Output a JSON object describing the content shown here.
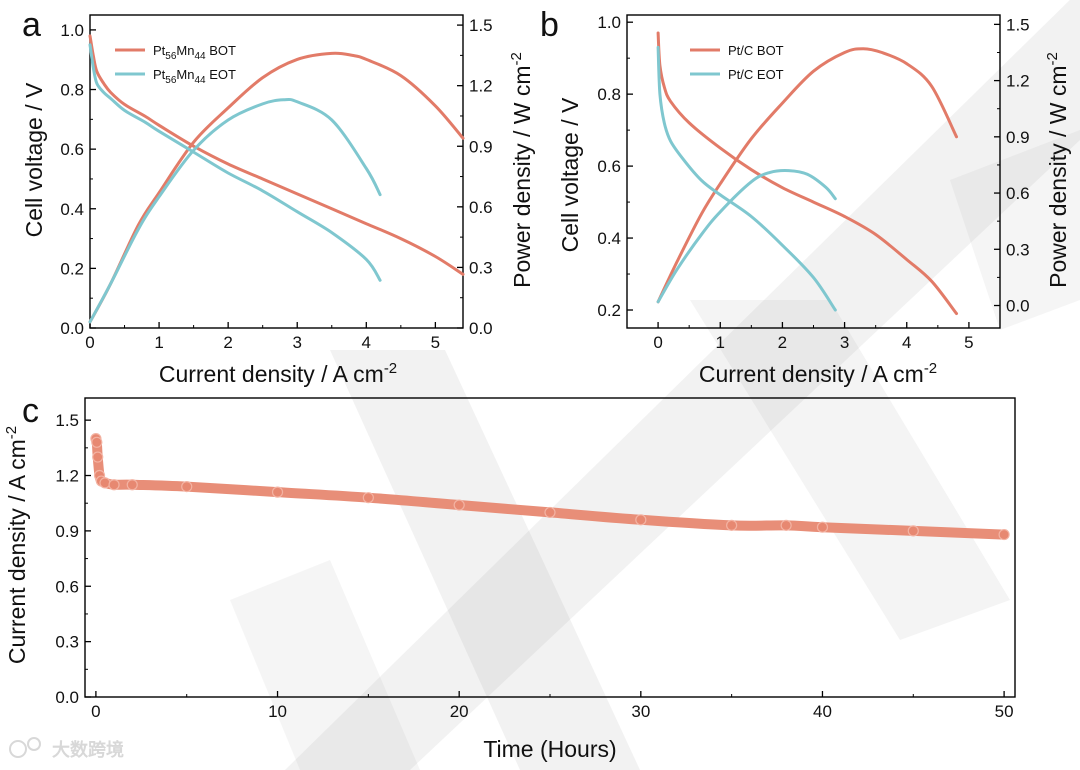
{
  "watermark_brand": "大数跨境",
  "colors": {
    "bot": "#E27B68",
    "eot": "#7FC7CF",
    "stability": "#E78871",
    "axis": "#000000"
  },
  "chart_data": [
    {
      "panel": "a",
      "type": "line",
      "xlabel": "Current density / A cm",
      "xlabel_sup": "-2",
      "ylabel_left": "Cell voltage / V",
      "ylabel_right": "Power density / W cm",
      "ylabel_right_sup": "-2",
      "xlim": [
        0,
        5.4
      ],
      "ylim_left": [
        0,
        1.05
      ],
      "ylim_right": [
        0,
        1.55
      ],
      "xticks": [
        0,
        1,
        2,
        3,
        4,
        5
      ],
      "xtick_labels": [
        "0",
        "1",
        "2",
        "3",
        "4",
        "5"
      ],
      "yticks_left": [
        0,
        0.2,
        0.4,
        0.6,
        0.8,
        1.0
      ],
      "ytick_labels_left": [
        "0.0",
        "0.2",
        "0.4",
        "0.6",
        "0.8",
        "1.0"
      ],
      "yticks_right": [
        0,
        0.3,
        0.6,
        0.9,
        1.2,
        1.5
      ],
      "ytick_labels_right": [
        "0.0",
        "0.3",
        "0.6",
        "0.9",
        "1.2",
        "1.5"
      ],
      "legend": [
        {
          "base": "Pt",
          "sub1": "56",
          "mid": "Mn",
          "sub2": "44",
          "tail": " BOT",
          "color_key": "bot"
        },
        {
          "base": "Pt",
          "sub1": "56",
          "mid": "Mn",
          "sub2": "44",
          "tail": " EOT",
          "color_key": "eot"
        }
      ],
      "series": [
        {
          "name": "Pt56Mn44 BOT voltage",
          "axis": "left",
          "color_key": "bot",
          "x": [
            0,
            0.05,
            0.1,
            0.2,
            0.3,
            0.5,
            0.8,
            1.0,
            1.5,
            2.0,
            2.5,
            3.0,
            3.5,
            4.0,
            4.5,
            5.0,
            5.4
          ],
          "y": [
            0.98,
            0.91,
            0.86,
            0.82,
            0.79,
            0.75,
            0.71,
            0.68,
            0.61,
            0.55,
            0.5,
            0.45,
            0.4,
            0.35,
            0.3,
            0.24,
            0.18
          ]
        },
        {
          "name": "Pt56Mn44 BOT power",
          "axis": "right",
          "color_key": "bot",
          "x": [
            0,
            0.3,
            0.7,
            1.0,
            1.5,
            2.0,
            2.5,
            3.0,
            3.5,
            3.8,
            4.0,
            4.5,
            5.0,
            5.4
          ],
          "y": [
            0.03,
            0.22,
            0.51,
            0.67,
            0.92,
            1.09,
            1.24,
            1.33,
            1.36,
            1.35,
            1.33,
            1.25,
            1.1,
            0.94
          ]
        },
        {
          "name": "Pt56Mn44 EOT voltage",
          "axis": "left",
          "color_key": "eot",
          "x": [
            0,
            0.05,
            0.1,
            0.2,
            0.3,
            0.5,
            0.8,
            1.0,
            1.5,
            2.0,
            2.5,
            3.0,
            3.5,
            4.0,
            4.2
          ],
          "y": [
            0.95,
            0.87,
            0.82,
            0.79,
            0.77,
            0.73,
            0.69,
            0.66,
            0.59,
            0.52,
            0.46,
            0.39,
            0.32,
            0.23,
            0.16
          ]
        },
        {
          "name": "Pt56Mn44 EOT power",
          "axis": "right",
          "color_key": "eot",
          "x": [
            0,
            0.3,
            0.7,
            1.0,
            1.5,
            2.0,
            2.5,
            2.8,
            3.0,
            3.5,
            4.0,
            4.2
          ],
          "y": [
            0.03,
            0.22,
            0.49,
            0.65,
            0.88,
            1.03,
            1.11,
            1.13,
            1.12,
            1.03,
            0.79,
            0.66
          ]
        }
      ]
    },
    {
      "panel": "b",
      "type": "line",
      "xlabel": "Current density / A cm",
      "xlabel_sup": "-2",
      "ylabel_left": "Cell voltage / V",
      "ylabel_right": "Power density / W cm",
      "ylabel_right_sup": "-2",
      "xlim": [
        -0.5,
        5.5
      ],
      "ylim_left": [
        0.15,
        1.02
      ],
      "ylim_right": [
        -0.12,
        1.55
      ],
      "xticks": [
        0,
        1,
        2,
        3,
        4,
        5
      ],
      "xtick_labels": [
        "0",
        "1",
        "2",
        "3",
        "4",
        "5"
      ],
      "yticks_left": [
        0.2,
        0.4,
        0.6,
        0.8,
        1.0
      ],
      "ytick_labels_left": [
        "0.2",
        "0.4",
        "0.6",
        "0.8",
        "1.0"
      ],
      "yticks_right": [
        0,
        0.3,
        0.6,
        0.9,
        1.2,
        1.5
      ],
      "ytick_labels_right": [
        "0.0",
        "0.3",
        "0.6",
        "0.9",
        "1.2",
        "1.5"
      ],
      "legend": [
        {
          "base": "Pt/C BOT",
          "sub1": "",
          "mid": "",
          "sub2": "",
          "tail": "",
          "color_key": "bot"
        },
        {
          "base": "Pt/C EOT",
          "sub1": "",
          "mid": "",
          "sub2": "",
          "tail": "",
          "color_key": "eot"
        }
      ],
      "series": [
        {
          "name": "Pt/C BOT voltage",
          "axis": "left",
          "color_key": "bot",
          "x": [
            0,
            0.03,
            0.1,
            0.2,
            0.5,
            1.0,
            1.5,
            2.0,
            2.5,
            3.0,
            3.5,
            4.0,
            4.4,
            4.8
          ],
          "y": [
            0.97,
            0.88,
            0.82,
            0.78,
            0.72,
            0.65,
            0.59,
            0.54,
            0.5,
            0.46,
            0.41,
            0.34,
            0.28,
            0.19
          ]
        },
        {
          "name": "Pt/C BOT power",
          "axis": "right",
          "color_key": "bot",
          "x": [
            0,
            0.3,
            0.7,
            1.0,
            1.5,
            2.0,
            2.5,
            3.0,
            3.3,
            3.6,
            4.0,
            4.4,
            4.8
          ],
          "y": [
            0.02,
            0.23,
            0.49,
            0.65,
            0.89,
            1.08,
            1.25,
            1.35,
            1.37,
            1.35,
            1.29,
            1.17,
            0.9
          ]
        },
        {
          "name": "Pt/C EOT voltage",
          "axis": "left",
          "color_key": "eot",
          "x": [
            0,
            0.03,
            0.1,
            0.2,
            0.4,
            0.7,
            1.0,
            1.5,
            2.0,
            2.5,
            2.85
          ],
          "y": [
            0.93,
            0.8,
            0.72,
            0.67,
            0.62,
            0.56,
            0.52,
            0.46,
            0.38,
            0.29,
            0.2
          ]
        },
        {
          "name": "Pt/C EOT power",
          "axis": "right",
          "color_key": "eot",
          "x": [
            0,
            0.3,
            0.7,
            1.0,
            1.5,
            1.8,
            2.1,
            2.4,
            2.7,
            2.85
          ],
          "y": [
            0.02,
            0.19,
            0.38,
            0.5,
            0.66,
            0.71,
            0.72,
            0.7,
            0.63,
            0.57
          ]
        }
      ]
    },
    {
      "panel": "c",
      "type": "scatter",
      "xlabel": "Time (Hours)",
      "ylabel": "Current density / A cm",
      "ylabel_sup": "-2",
      "xlim": [
        -0.6,
        50.6
      ],
      "ylim": [
        0,
        1.62
      ],
      "xticks": [
        0,
        10,
        20,
        30,
        40,
        50
      ],
      "xtick_labels": [
        "0",
        "10",
        "20",
        "30",
        "40",
        "50"
      ],
      "yticks": [
        0,
        0.3,
        0.6,
        0.9,
        1.2,
        1.5
      ],
      "ytick_labels": [
        "0.0",
        "0.3",
        "0.6",
        "0.9",
        "1.2",
        "1.5"
      ],
      "series": [
        {
          "name": "Current density stability",
          "color_key": "stability",
          "x": [
            0,
            0.05,
            0.1,
            0.2,
            0.3,
            0.5,
            1,
            2,
            5,
            10,
            15,
            20,
            25,
            30,
            35,
            38,
            40,
            45,
            50
          ],
          "y": [
            1.4,
            1.38,
            1.3,
            1.2,
            1.17,
            1.16,
            1.15,
            1.15,
            1.14,
            1.11,
            1.08,
            1.04,
            1.0,
            0.96,
            0.93,
            0.93,
            0.92,
            0.9,
            0.88
          ]
        }
      ]
    }
  ]
}
